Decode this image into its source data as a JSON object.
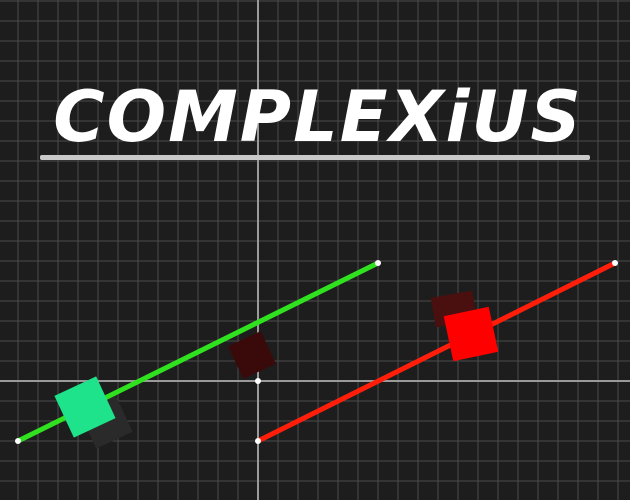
{
  "title": {
    "text": "COMPLEXiUS"
  },
  "colors": {
    "background": "#1d1d1d",
    "grid": "#4a4a4a",
    "axis": "#9a9a9a",
    "green_line": "#2fe11f",
    "red_line": "#ff1e0a",
    "green_block": "#1fe38a",
    "red_block": "#ff0000",
    "shadow_block": "#2a2a2a",
    "dark_red_block": "#3a0a0a",
    "endpoint": "#ffffff"
  },
  "scene": {
    "green_segment": {
      "from": "white-dot",
      "to": "white-dot"
    },
    "red_segment": {
      "from": "white-dot",
      "to": "white-dot"
    }
  }
}
